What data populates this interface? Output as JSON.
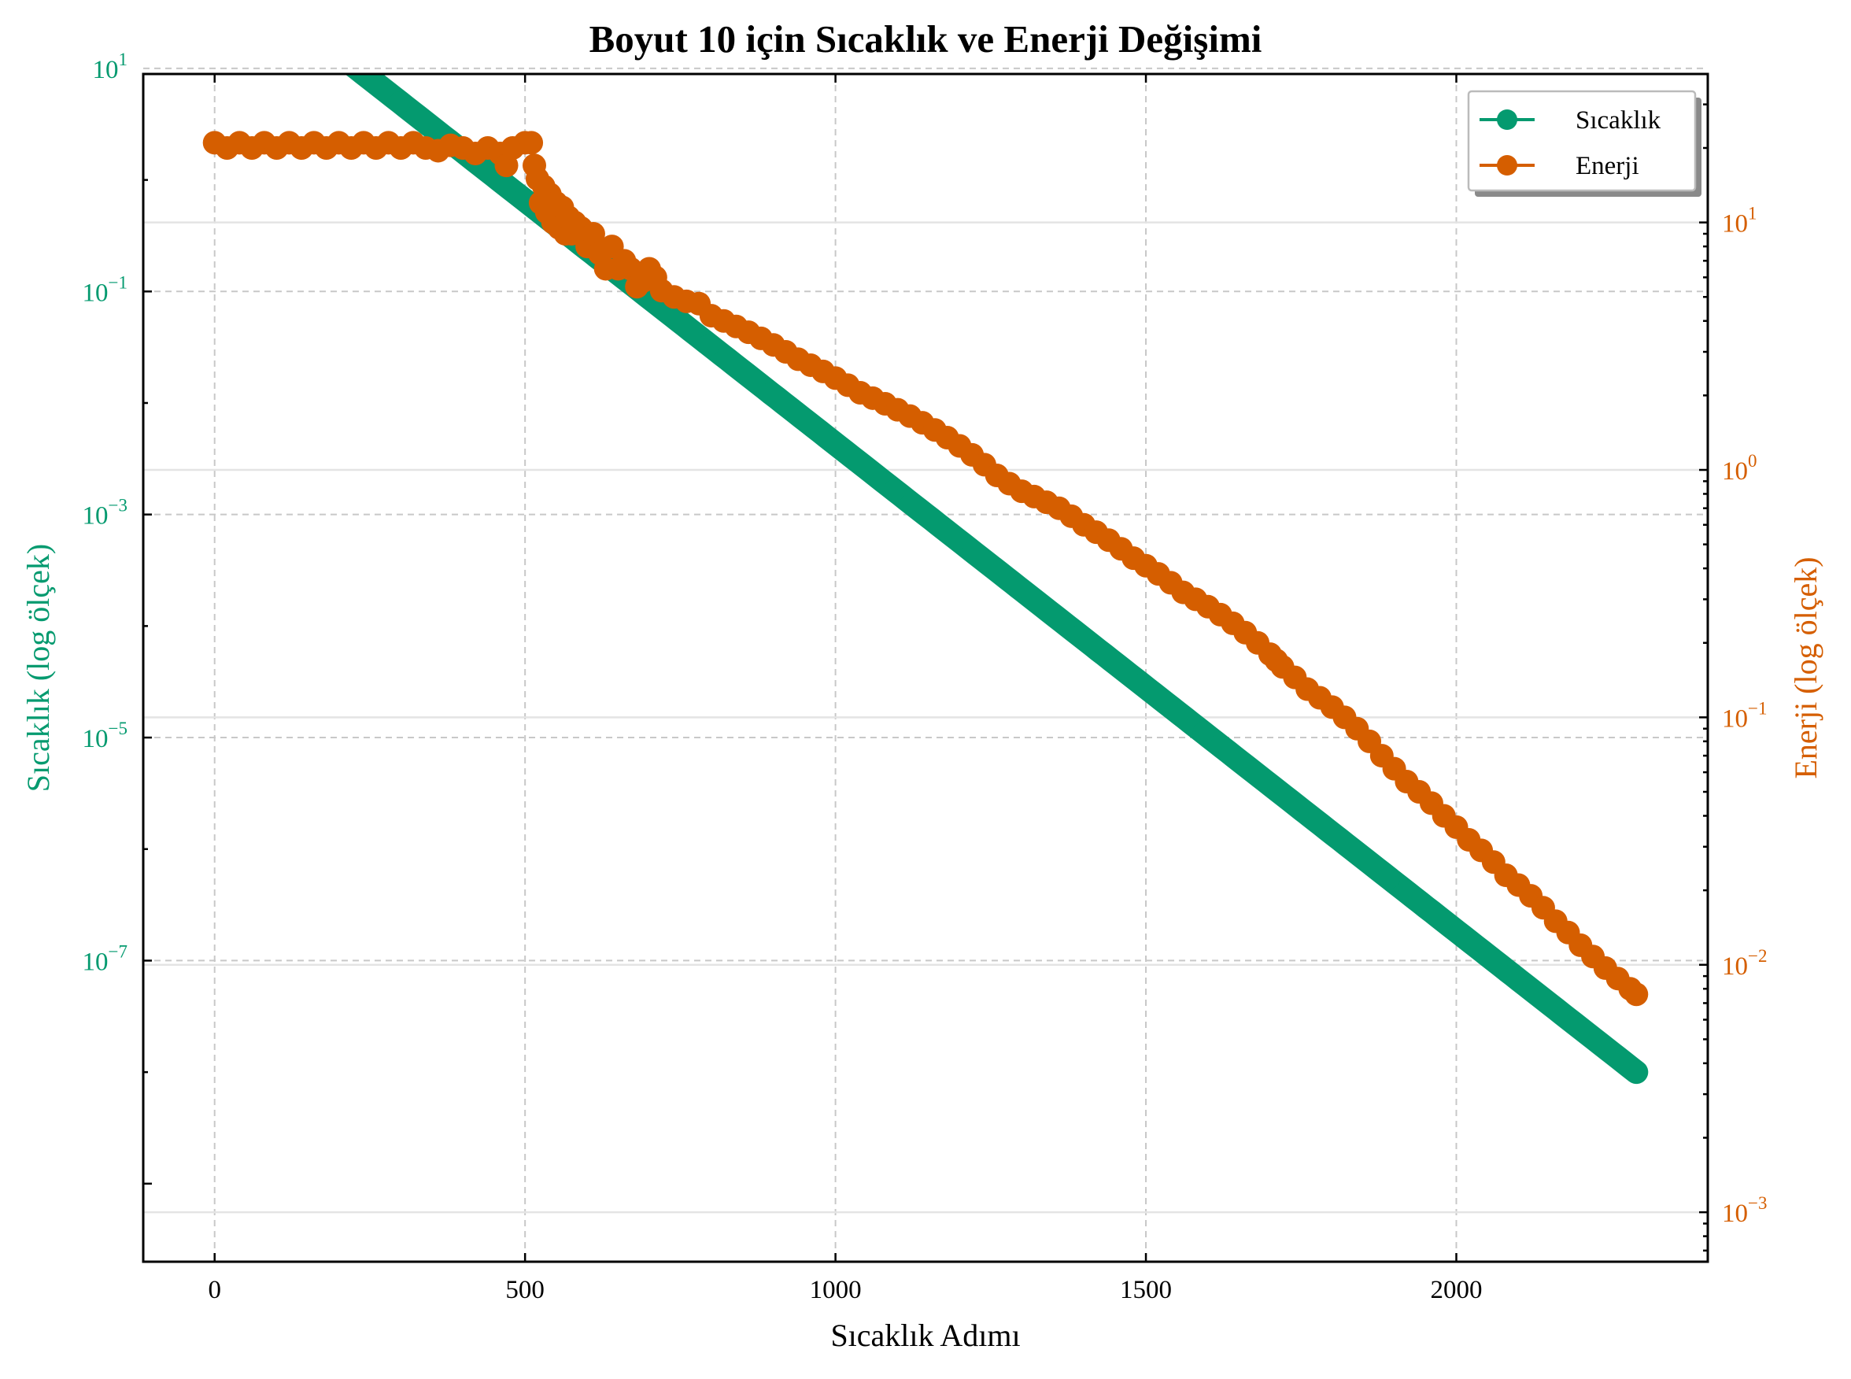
{
  "colors": {
    "temperature": "#049a6f",
    "energy": "#d55e00",
    "grid_dashed": "#c8c8c8",
    "grid_solid": "#e4e4e4"
  },
  "chart_data": {
    "type": "line",
    "title": "Boyut 10 için Sıcaklık ve Enerji Değişimi",
    "xlabel": "Sıcaklık Adımı",
    "ylabel_left": "Sıcaklık (log ölçek)",
    "ylabel_right": "Enerji (log ölçek)",
    "xlim": [
      -115,
      2405
    ],
    "ylim_left_log10": [
      -9.7,
      0.95
    ],
    "ylim_right_log10": [
      -3.2,
      1.6
    ],
    "x_ticks": [
      0,
      500,
      1000,
      1500,
      2000
    ],
    "y_left_ticks": [
      {
        "base": "10",
        "exp": "1"
      },
      {
        "base": "10",
        "exp": "−1"
      },
      {
        "base": "10",
        "exp": "−3"
      },
      {
        "base": "10",
        "exp": "−5"
      },
      {
        "base": "10",
        "exp": "−7"
      }
    ],
    "y_right_ticks": [
      {
        "base": "10",
        "exp": "1"
      },
      {
        "base": "10",
        "exp": "0"
      },
      {
        "base": "10",
        "exp": "−1"
      },
      {
        "base": "10",
        "exp": "−2"
      },
      {
        "base": "10",
        "exp": "−3"
      }
    ],
    "grid": true,
    "legend_position": "top-right",
    "series": [
      {
        "name": "Sıcaklık",
        "axis": "left",
        "color": "#049a6f",
        "marker": "circle",
        "x_range": [
          0,
          2290
        ],
        "y_start": 100,
        "y_end": 1e-08,
        "scale": "log"
      },
      {
        "name": "Enerji",
        "axis": "right",
        "color": "#d55e00",
        "marker": "circle",
        "scale": "log",
        "points": [
          [
            0,
            21
          ],
          [
            20,
            20
          ],
          [
            40,
            21
          ],
          [
            60,
            20
          ],
          [
            80,
            21
          ],
          [
            100,
            20
          ],
          [
            120,
            21
          ],
          [
            140,
            20
          ],
          [
            160,
            21
          ],
          [
            180,
            20
          ],
          [
            200,
            21
          ],
          [
            220,
            20
          ],
          [
            240,
            21
          ],
          [
            260,
            20
          ],
          [
            280,
            21
          ],
          [
            300,
            20
          ],
          [
            320,
            21
          ],
          [
            340,
            20
          ],
          [
            360,
            19.5
          ],
          [
            380,
            20.5
          ],
          [
            400,
            20
          ],
          [
            420,
            19
          ],
          [
            440,
            20
          ],
          [
            460,
            19
          ],
          [
            470,
            17
          ],
          [
            480,
            20
          ],
          [
            500,
            21
          ],
          [
            510,
            21
          ],
          [
            515,
            17
          ],
          [
            520,
            15
          ],
          [
            525,
            12
          ],
          [
            530,
            14
          ],
          [
            535,
            11
          ],
          [
            540,
            13
          ],
          [
            545,
            10
          ],
          [
            550,
            12
          ],
          [
            555,
            9.5
          ],
          [
            560,
            11.5
          ],
          [
            565,
            9
          ],
          [
            570,
            10.5
          ],
          [
            575,
            9
          ],
          [
            580,
            10
          ],
          [
            590,
            9.5
          ],
          [
            600,
            8
          ],
          [
            610,
            9
          ],
          [
            620,
            7.5
          ],
          [
            630,
            6.5
          ],
          [
            640,
            8
          ],
          [
            650,
            6.5
          ],
          [
            660,
            7
          ],
          [
            670,
            6.5
          ],
          [
            680,
            5.5
          ],
          [
            690,
            5.8
          ],
          [
            700,
            6.5
          ],
          [
            710,
            6
          ],
          [
            720,
            5.3
          ],
          [
            740,
            5
          ],
          [
            760,
            4.8
          ],
          [
            780,
            4.7
          ],
          [
            800,
            4.2
          ],
          [
            820,
            4.0
          ],
          [
            840,
            3.8
          ],
          [
            860,
            3.6
          ],
          [
            880,
            3.4
          ],
          [
            900,
            3.2
          ],
          [
            920,
            3.0
          ],
          [
            940,
            2.8
          ],
          [
            960,
            2.65
          ],
          [
            980,
            2.5
          ],
          [
            1000,
            2.35
          ],
          [
            1020,
            2.2
          ],
          [
            1040,
            2.05
          ],
          [
            1060,
            1.95
          ],
          [
            1080,
            1.85
          ],
          [
            1100,
            1.75
          ],
          [
            1120,
            1.65
          ],
          [
            1140,
            1.55
          ],
          [
            1160,
            1.45
          ],
          [
            1180,
            1.35
          ],
          [
            1200,
            1.25
          ],
          [
            1220,
            1.15
          ],
          [
            1240,
            1.05
          ],
          [
            1260,
            0.95
          ],
          [
            1280,
            0.88
          ],
          [
            1300,
            0.82
          ],
          [
            1320,
            0.78
          ],
          [
            1340,
            0.74
          ],
          [
            1360,
            0.7
          ],
          [
            1380,
            0.65
          ],
          [
            1400,
            0.6
          ],
          [
            1420,
            0.56
          ],
          [
            1440,
            0.52
          ],
          [
            1460,
            0.48
          ],
          [
            1480,
            0.44
          ],
          [
            1500,
            0.41
          ],
          [
            1520,
            0.38
          ],
          [
            1540,
            0.35
          ],
          [
            1560,
            0.32
          ],
          [
            1580,
            0.3
          ],
          [
            1600,
            0.28
          ],
          [
            1620,
            0.26
          ],
          [
            1640,
            0.24
          ],
          [
            1660,
            0.22
          ],
          [
            1680,
            0.2
          ],
          [
            1700,
            0.18
          ],
          [
            1710,
            0.17
          ],
          [
            1720,
            0.16
          ],
          [
            1740,
            0.145
          ],
          [
            1760,
            0.13
          ],
          [
            1780,
            0.12
          ],
          [
            1800,
            0.11
          ],
          [
            1820,
            0.1
          ],
          [
            1840,
            0.09
          ],
          [
            1860,
            0.08
          ],
          [
            1880,
            0.07
          ],
          [
            1900,
            0.062
          ],
          [
            1920,
            0.055
          ],
          [
            1940,
            0.05
          ],
          [
            1960,
            0.045
          ],
          [
            1980,
            0.04
          ],
          [
            2000,
            0.036
          ],
          [
            2020,
            0.032
          ],
          [
            2040,
            0.029
          ],
          [
            2060,
            0.026
          ],
          [
            2080,
            0.023
          ],
          [
            2100,
            0.021
          ],
          [
            2120,
            0.019
          ],
          [
            2140,
            0.017
          ],
          [
            2160,
            0.015
          ],
          [
            2180,
            0.0135
          ],
          [
            2200,
            0.012
          ],
          [
            2220,
            0.0108
          ],
          [
            2240,
            0.0097
          ],
          [
            2260,
            0.0088
          ],
          [
            2280,
            0.008
          ],
          [
            2290,
            0.0076
          ]
        ]
      }
    ]
  }
}
